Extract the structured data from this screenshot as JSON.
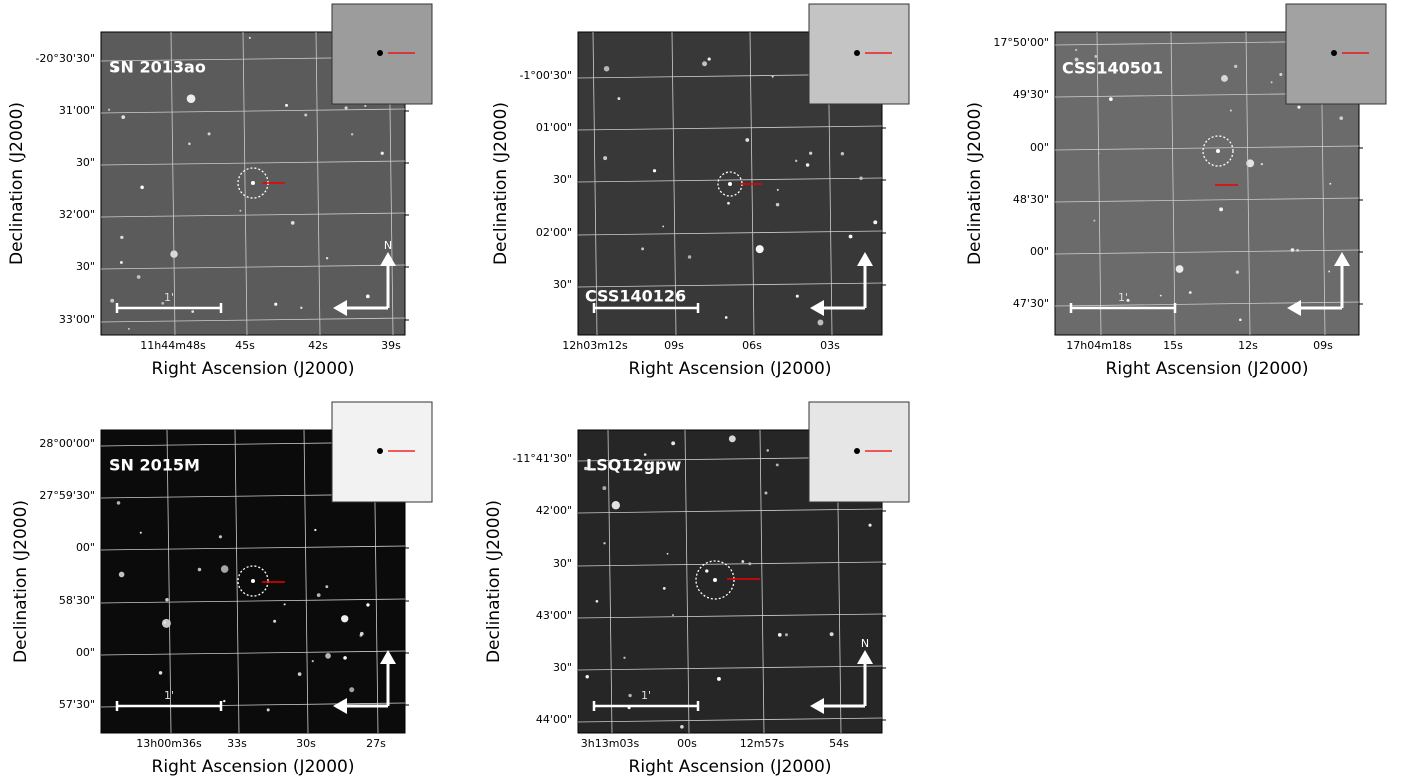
{
  "axis_labels": {
    "x": "Right Ascension (J2000)",
    "y": "Declination (J2000)"
  },
  "scale_label": "1'",
  "north_label": "N",
  "panels": [
    {
      "name": "SN 2013ao",
      "yticks": [
        "-20°30'30\"",
        "31'00\"",
        "30\"",
        "32'00\"",
        "30\"",
        "33'00\""
      ],
      "xticks": [
        "11h44m48s",
        "45s",
        "42s",
        "39s"
      ]
    },
    {
      "name": "CSS140126",
      "yticks": [
        "-1°00'30\"",
        "01'00\"",
        "30\"",
        "02'00\"",
        "30\""
      ],
      "xticks": [
        "12h03m12s",
        "09s",
        "06s",
        "03s"
      ]
    },
    {
      "name": "CSS140501",
      "yticks": [
        "17°50'00\"",
        "49'30\"",
        "00\"",
        "48'30\"",
        "00\"",
        "47'30\""
      ],
      "xticks": [
        "17h04m18s",
        "15s",
        "12s",
        "09s"
      ]
    },
    {
      "name": "SN 2015M",
      "yticks": [
        "28°00'00\"",
        "27°59'30\"",
        "00\"",
        "58'30\"",
        "00\"",
        "57'30\""
      ],
      "xticks": [
        "13h00m36s",
        "33s",
        "30s",
        "27s"
      ]
    },
    {
      "name": "LSQ12gpw",
      "yticks": [
        "-11°41'30\"",
        "42'00\"",
        "30\"",
        "43'00\"",
        "30\"",
        "44'00\""
      ],
      "xticks": [
        "3h13m03s",
        "00s",
        "12m57s",
        "54s"
      ]
    }
  ]
}
